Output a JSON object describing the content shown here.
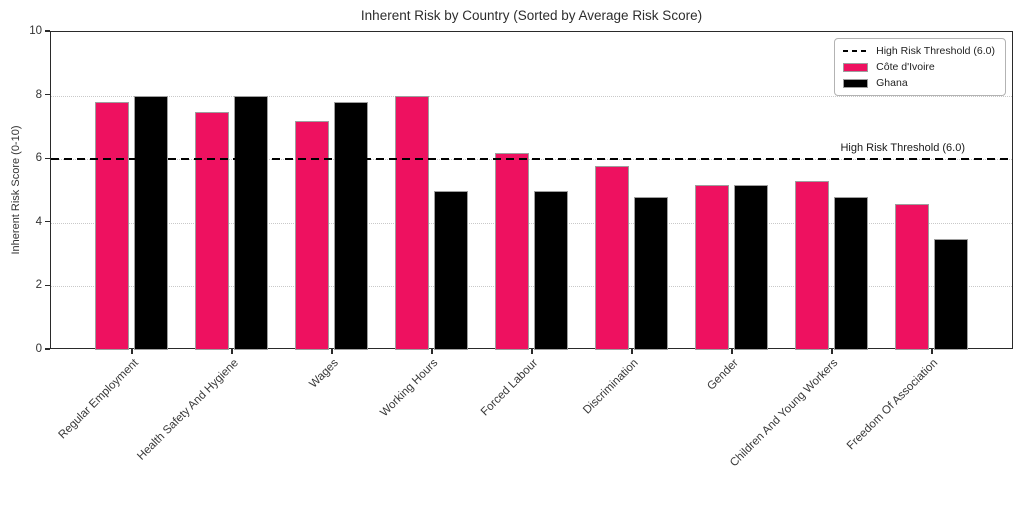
{
  "chart_data": {
    "type": "bar",
    "title": "Inherent Risk by Country (Sorted by Average Risk Score)",
    "ylabel": "Inherent Risk Score (0-10)",
    "xlabel": "",
    "ylim": [
      0,
      10
    ],
    "yticks": [
      0,
      2,
      4,
      6,
      8,
      10
    ],
    "grid": true,
    "grid_color": "#c9c9c9",
    "bar_edge_color": "#9e9e9e",
    "categories": [
      "Regular Employment",
      "Health Safety And Hygiene",
      "Wages",
      "Working Hours",
      "Forced Labour",
      "Discrimination",
      "Gender",
      "Children And Young Workers",
      "Freedom Of Association"
    ],
    "series": [
      {
        "name": "Côte d'Ivoire",
        "color": "#EE1160",
        "values": [
          7.8,
          7.5,
          7.2,
          8.0,
          6.2,
          5.8,
          5.2,
          5.3,
          4.6
        ]
      },
      {
        "name": "Ghana",
        "color": "#000000",
        "values": [
          8.0,
          8.0,
          7.8,
          5.0,
          5.0,
          4.8,
          5.2,
          4.8,
          3.5
        ]
      }
    ],
    "threshold": {
      "value": 6.0,
      "label": "High Risk Threshold (6.0)",
      "color": "#000000",
      "style": "dashed"
    },
    "legend": {
      "position": "upper right",
      "items": [
        "High Risk Threshold (6.0)",
        "Côte d'Ivoire",
        "Ghana"
      ]
    }
  }
}
